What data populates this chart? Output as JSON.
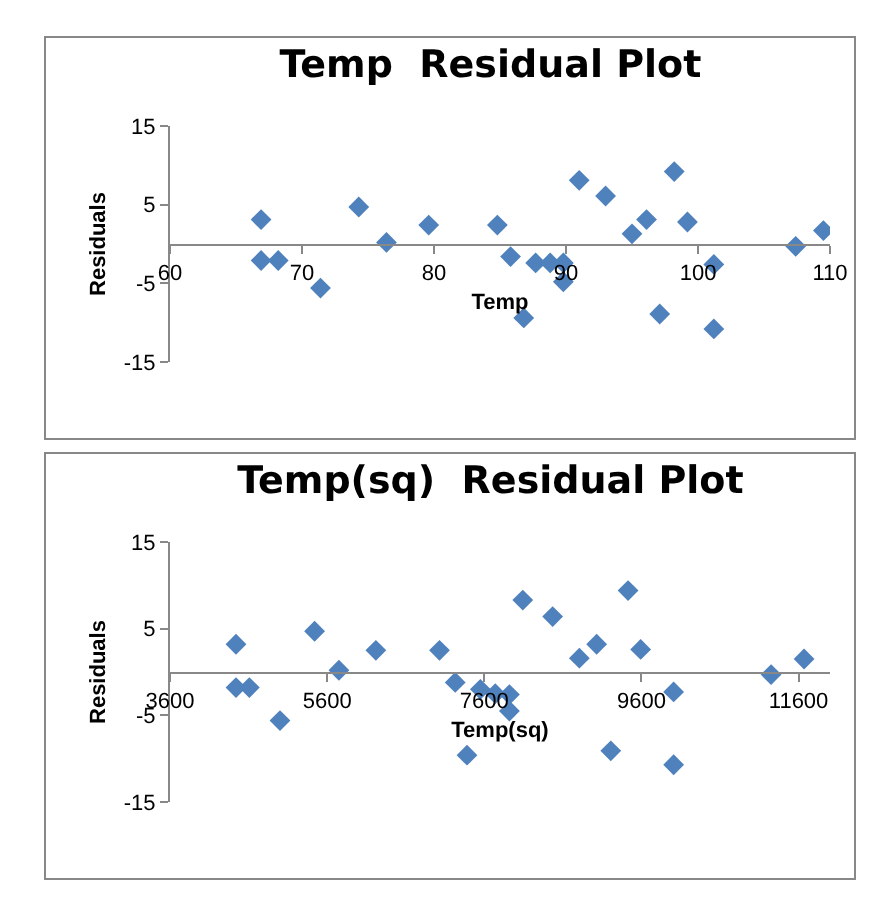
{
  "chart_data": [
    {
      "type": "scatter",
      "title": "Temp  Residual Plot",
      "xlabel": "Temp",
      "ylabel": "Residuals",
      "marker": "diamond",
      "grid": false,
      "xlim": [
        60,
        110
      ],
      "xticks": [
        60,
        70,
        80,
        90,
        100,
        110
      ],
      "ylim": [
        -15,
        15
      ],
      "yticks": [
        -15,
        -5,
        5,
        15
      ],
      "series": [
        {
          "color": "#4f81bd",
          "x": [
            66.9,
            66.9,
            68.2,
            71.4,
            74.3,
            76.4,
            79.6,
            84.8,
            85.8,
            86.8,
            87.7,
            88.8,
            89.8,
            89.8,
            91.0,
            93.0,
            95.0,
            96.1,
            97.1,
            98.2,
            99.2,
            101.2,
            101.2,
            107.4,
            109.5
          ],
          "values": [
            3.1,
            -2.1,
            -2.1,
            -5.6,
            4.7,
            0.2,
            2.4,
            2.4,
            -1.6,
            -9.4,
            -2.4,
            -2.4,
            -2.4,
            -4.8,
            8.1,
            6.1,
            1.3,
            3.1,
            -8.9,
            9.2,
            2.8,
            -2.6,
            -10.8,
            -0.3,
            1.7
          ]
        }
      ]
    },
    {
      "type": "scatter",
      "title": "Temp(sq)  Residual Plot",
      "xlabel": "Temp(sq)",
      "ylabel": "Residuals",
      "marker": "diamond",
      "grid": false,
      "xlim": [
        3600,
        12000
      ],
      "xticks": [
        3600,
        5600,
        7600,
        9600,
        11600
      ],
      "ylim": [
        -15,
        15
      ],
      "yticks": [
        -15,
        -5,
        5,
        15
      ],
      "series": [
        {
          "color": "#4f81bd",
          "x": [
            4440,
            4440,
            4610,
            5000,
            5440,
            5750,
            6220,
            7030,
            7230,
            7380,
            7550,
            7740,
            7920,
            7920,
            8090,
            8470,
            8810,
            9030,
            9210,
            9430,
            9590,
            10010,
            10010,
            11250,
            11670
          ],
          "values": [
            3.2,
            -1.8,
            -1.8,
            -5.6,
            4.7,
            0.2,
            2.5,
            2.5,
            -1.2,
            -9.6,
            -2.0,
            -2.5,
            -2.6,
            -4.5,
            8.3,
            6.4,
            1.6,
            3.2,
            -9.1,
            9.4,
            2.6,
            -2.3,
            -10.7,
            -0.3,
            1.5
          ]
        }
      ]
    }
  ]
}
